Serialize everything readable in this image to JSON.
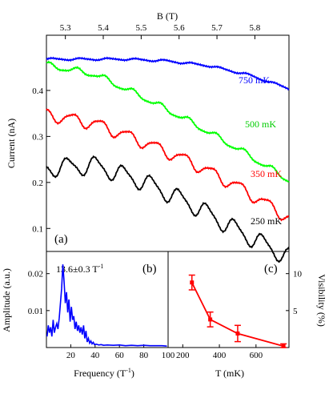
{
  "chart_data": [
    {
      "panel": "(a)",
      "type": "line",
      "xlabel": "B (T)",
      "ylabel": "Current (nA)",
      "xlim": [
        5.25,
        5.89
      ],
      "ylim": [
        0.05,
        0.52
      ],
      "x_ticks": [
        "5.3",
        "5.4",
        "5.5",
        "5.6",
        "5.7",
        "5.8"
      ],
      "y_ticks": [
        "0.1",
        "0.2",
        "0.3",
        "0.4"
      ],
      "x_axis_position": "top",
      "grid": false,
      "series": [
        {
          "name": "750 mK",
          "color": "#0000ff",
          "start": 0.468,
          "slope": [
            0.0,
            0.0,
            -0.004,
            -0.01,
            -0.02,
            -0.03
          ],
          "amp": 0.002
        },
        {
          "name": "500 mK",
          "color": "#00ff00",
          "start": 0.455,
          "slope": [
            -0.02,
            -0.05,
            -0.055,
            -0.06,
            -0.065
          ],
          "amp": 0.006
        },
        {
          "name": "350 mK",
          "color": "#ff0000",
          "start": 0.348,
          "slope": [
            -0.02,
            -0.04,
            -0.045,
            -0.055,
            -0.065
          ],
          "amp": 0.012
        },
        {
          "name": "250 mK",
          "color": "#000000",
          "start": 0.232,
          "slope": [
            0.005,
            -0.035,
            -0.05,
            -0.06,
            -0.055
          ],
          "amp": 0.018
        }
      ],
      "period_T": 0.0735
    },
    {
      "panel": "(b)",
      "type": "line",
      "annotation": "13.6±0.3 T",
      "annotation_sup": "-1",
      "xlabel": "Frequency (T",
      "xlabel_sup": "-1",
      "xlabel_end": ")",
      "ylabel": "Amplitude (a.u.)",
      "xlim": [
        0,
        100
      ],
      "ylim": [
        0,
        0.026
      ],
      "x_ticks": [
        "20",
        "40",
        "60",
        "80",
        "100"
      ],
      "y_ticks": [
        "0.01",
        "0.02"
      ],
      "color": "#0000ff",
      "x": [
        0.5,
        1.5,
        2.5,
        3.5,
        4.5,
        5.5,
        6.5,
        7.5,
        8.5,
        9.5,
        10.5,
        11.5,
        12.5,
        13.5,
        14.5,
        15.5,
        16.5,
        17.5,
        18.5,
        19.5,
        20.5,
        21.5,
        22.5,
        23.5,
        24.5,
        25.5,
        26.5,
        27.5,
        28.5,
        29.5,
        30.5,
        31.5,
        32.5,
        33.5,
        34.5,
        35.5,
        36.5,
        37.5,
        38.5,
        39.5,
        41,
        43,
        45,
        47,
        50,
        55,
        60,
        65,
        70,
        75,
        80,
        85,
        90,
        95,
        99
      ],
      "y": [
        0.003,
        0.006,
        0.004,
        0.0055,
        0.003,
        0.0075,
        0.004,
        0.0055,
        0.0065,
        0.005,
        0.008,
        0.012,
        0.016,
        0.0225,
        0.018,
        0.012,
        0.015,
        0.0095,
        0.013,
        0.007,
        0.011,
        0.0075,
        0.0085,
        0.005,
        0.007,
        0.0045,
        0.006,
        0.004,
        0.0055,
        0.0035,
        0.006,
        0.0025,
        0.0045,
        0.0015,
        0.0025,
        0.0012,
        0.0018,
        0.001,
        0.0014,
        0.0008,
        0.0009,
        0.0007,
        0.0008,
        0.0006,
        0.0007,
        0.0006,
        0.0007,
        0.0005,
        0.0006,
        0.0005,
        0.0006,
        0.0005,
        0.0005,
        0.0005,
        0.0004
      ]
    },
    {
      "panel": "(c)",
      "type": "scatter",
      "xlabel": "T (mK)",
      "ylabel": "Visibility (%)",
      "xlim": [
        120,
        780
      ],
      "ylim": [
        0,
        13
      ],
      "x_ticks": [
        "200",
        "400",
        "600"
      ],
      "y_ticks": [
        "5",
        "10"
      ],
      "y_axis_position": "right",
      "color": "#ff0000",
      "x": [
        250,
        350,
        500,
        750
      ],
      "y": [
        8.8,
        3.8,
        1.9,
        0.2
      ],
      "err": [
        1.0,
        1.0,
        1.1,
        0.3
      ]
    }
  ]
}
